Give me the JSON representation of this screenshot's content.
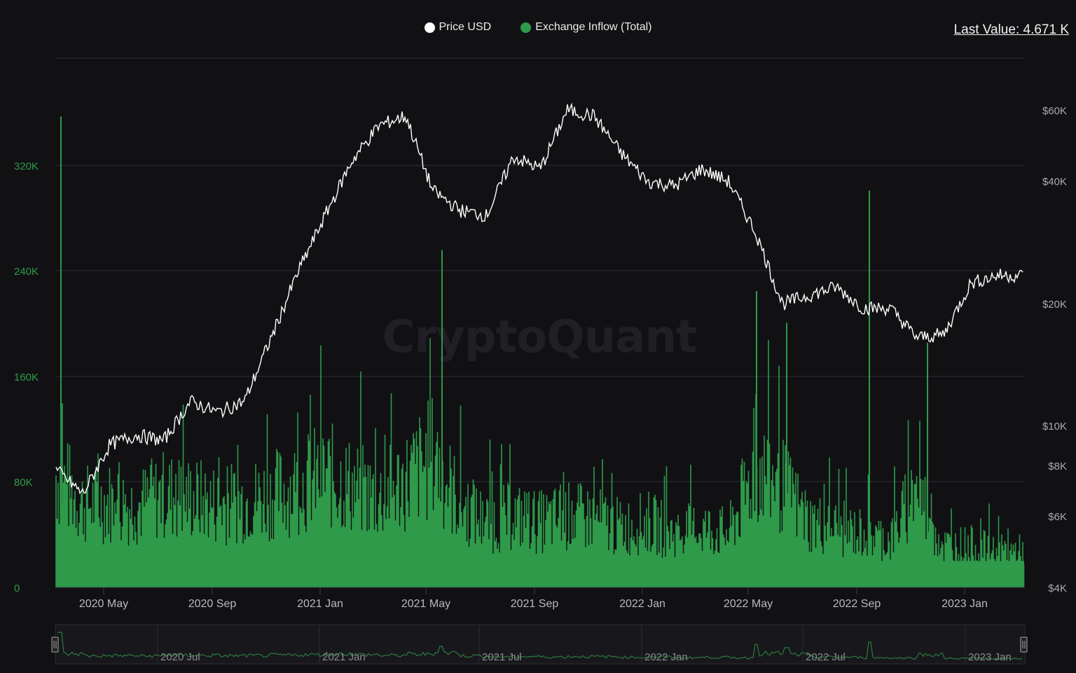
{
  "legend": {
    "items": [
      {
        "label": "Price USD",
        "color": "#ffffff"
      },
      {
        "label": "Exchange Inflow (Total)",
        "color": "#2e9a4a"
      }
    ]
  },
  "last_value": "Last Value: 4.671 K",
  "watermark": "CryptoQuant",
  "colors": {
    "background": "#111114",
    "gridline": "#2e2e34",
    "inflow": "#2e9a4a",
    "price": "#ffffff",
    "left_axis": "#2e9a4a",
    "right_axis": "#a9a9b0"
  },
  "navigator": {
    "labels": [
      "2020 Jul",
      "2021 Jan",
      "2021 Jul",
      "2022 Jan",
      "2022 Jul",
      "2023 Jan"
    ]
  },
  "chart_data": {
    "type": "bar+line",
    "title": "",
    "legend_position": "top-center",
    "grid": true,
    "x_tick_labels": [
      "2020 May",
      "2020 Sep",
      "2021 Jan",
      "2021 May",
      "2021 Sep",
      "2022 Jan",
      "2022 May",
      "2022 Sep",
      "2023 Jan"
    ],
    "x_range": [
      "2020 Mar",
      "2023 Feb"
    ],
    "left_axis": {
      "label": "Exchange Inflow (Total)",
      "ticks": [
        "0",
        "80K",
        "160K",
        "240K",
        "320K"
      ],
      "range": [
        0,
        400000
      ]
    },
    "right_axis": {
      "label": "Price USD",
      "scale": "log",
      "ticks": [
        "$4K",
        "$6K",
        "$8K",
        "$10K",
        "$20K",
        "$40K",
        "$60K"
      ],
      "range": [
        4000,
        90000
      ]
    },
    "series": [
      {
        "name": "Exchange Inflow (Total)",
        "type": "bar",
        "axis": "left",
        "sampled_monthly_typical_k": {
          "x": [
            "2020 Mar",
            "2020 Apr",
            "2020 May",
            "2020 Jun",
            "2020 Jul",
            "2020 Aug",
            "2020 Sep",
            "2020 Oct",
            "2020 Nov",
            "2020 Dec",
            "2021 Jan",
            "2021 Feb",
            "2021 Mar",
            "2021 Apr",
            "2021 May",
            "2021 Jun",
            "2021 Jul",
            "2021 Aug",
            "2021 Sep",
            "2021 Oct",
            "2021 Nov",
            "2021 Dec",
            "2022 Jan",
            "2022 Feb",
            "2022 Mar",
            "2022 Apr",
            "2022 May",
            "2022 Jun",
            "2022 Jul",
            "2022 Aug",
            "2022 Sep",
            "2022 Oct",
            "2022 Nov",
            "2022 Dec",
            "2023 Jan",
            "2023 Feb"
          ],
          "values": [
            95,
            70,
            72,
            68,
            78,
            75,
            70,
            72,
            78,
            85,
            95,
            85,
            75,
            90,
            110,
            70,
            55,
            60,
            55,
            60,
            58,
            50,
            55,
            45,
            50,
            45,
            100,
            85,
            55,
            50,
            45,
            40,
            85,
            35,
            35,
            30
          ]
        },
        "notable_spikes_k": [
          {
            "x": "2020 Mar",
            "value": 356
          },
          {
            "x": "2021 May",
            "value": 255
          },
          {
            "x": "2022 May",
            "value": 224
          },
          {
            "x": "2022 Jun",
            "value": 200
          },
          {
            "x": "2022 Sep",
            "value": 300
          },
          {
            "x": "2022 Nov",
            "value": 185
          }
        ],
        "last_value": 4671
      },
      {
        "name": "Price USD",
        "type": "line",
        "axis": "right",
        "x": [
          "2020 Mar",
          "2020 Apr",
          "2020 May",
          "2020 Jun",
          "2020 Jul",
          "2020 Aug",
          "2020 Sep",
          "2020 Oct",
          "2020 Nov",
          "2020 Dec",
          "2021 Jan",
          "2021 Feb",
          "2021 Mar",
          "2021 Apr",
          "2021 May",
          "2021 Jun",
          "2021 Jul",
          "2021 Aug",
          "2021 Sep",
          "2021 Oct",
          "2021 Nov",
          "2021 Dec",
          "2022 Jan",
          "2022 Feb",
          "2022 Mar",
          "2022 Apr",
          "2022 May",
          "2022 Jun",
          "2022 Jul",
          "2022 Aug",
          "2022 Sep",
          "2022 Oct",
          "2022 Nov",
          "2022 Dec",
          "2023 Jan",
          "2023 Feb"
        ],
        "values": [
          7800,
          6800,
          9000,
          9500,
          9200,
          11500,
          10800,
          11500,
          16500,
          24000,
          33000,
          45000,
          55000,
          58000,
          38000,
          34000,
          33000,
          46000,
          43000,
          60000,
          58000,
          47000,
          40000,
          39000,
          43000,
          40000,
          30000,
          20000,
          21000,
          22000,
          19500,
          19500,
          16500,
          16800,
          22500,
          23500
        ]
      }
    ]
  }
}
